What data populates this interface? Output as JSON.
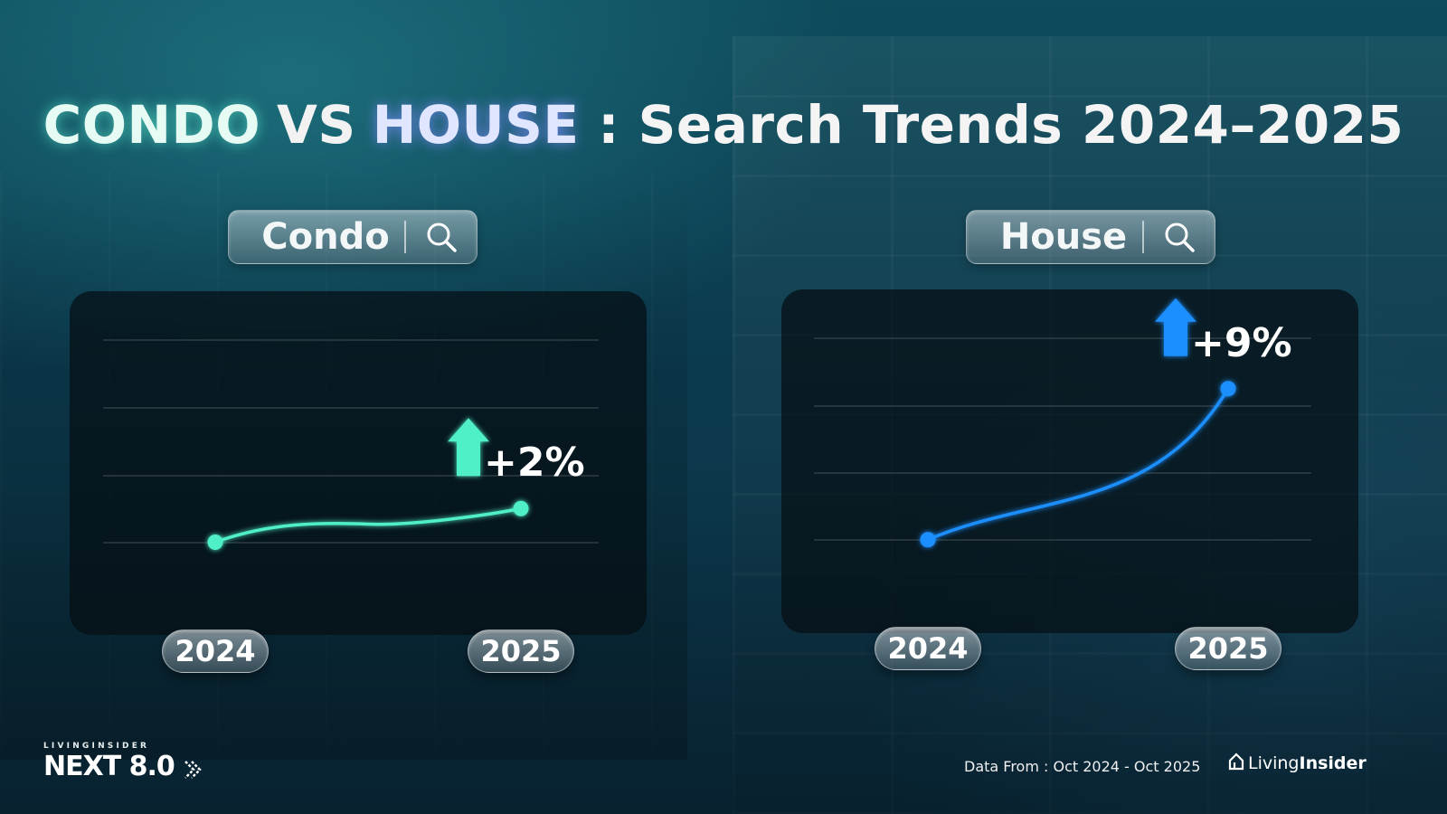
{
  "title": {
    "part1": "CONDO",
    "part2": "VS",
    "part3": "HOUSE",
    "part4": ": Search Trends 2024–2025"
  },
  "colors": {
    "condo_accent": "#4ff0c8",
    "house_accent": "#1e8fff"
  },
  "chart_data": [
    {
      "type": "line",
      "search_label": "Condo",
      "categories": [
        "2024",
        "2025"
      ],
      "series": [
        {
          "values": [
            100,
            102
          ]
        }
      ],
      "annotation": "+2%",
      "color": "#4ff0c8",
      "ylim": [
        96,
        112
      ],
      "grid": true
    },
    {
      "type": "line",
      "search_label": "House",
      "categories": [
        "2024",
        "2025"
      ],
      "series": [
        {
          "values": [
            100,
            109
          ]
        }
      ],
      "annotation": "+9%",
      "color": "#1e8fff",
      "ylim": [
        96,
        112
      ],
      "grid": true
    }
  ],
  "footer": {
    "brand_small": "LIVINGINSIDER",
    "brand_big": "NEXT 8.0",
    "source": "Data From : Oct 2024 - Oct  2025",
    "logo_part1": "Living",
    "logo_part2": "Insider"
  },
  "icons": {
    "search": "search-icon",
    "arrow_up": "arrow-up-icon",
    "brand_arrow": "chevron-right-icon",
    "logo": "house-logo-icon"
  }
}
